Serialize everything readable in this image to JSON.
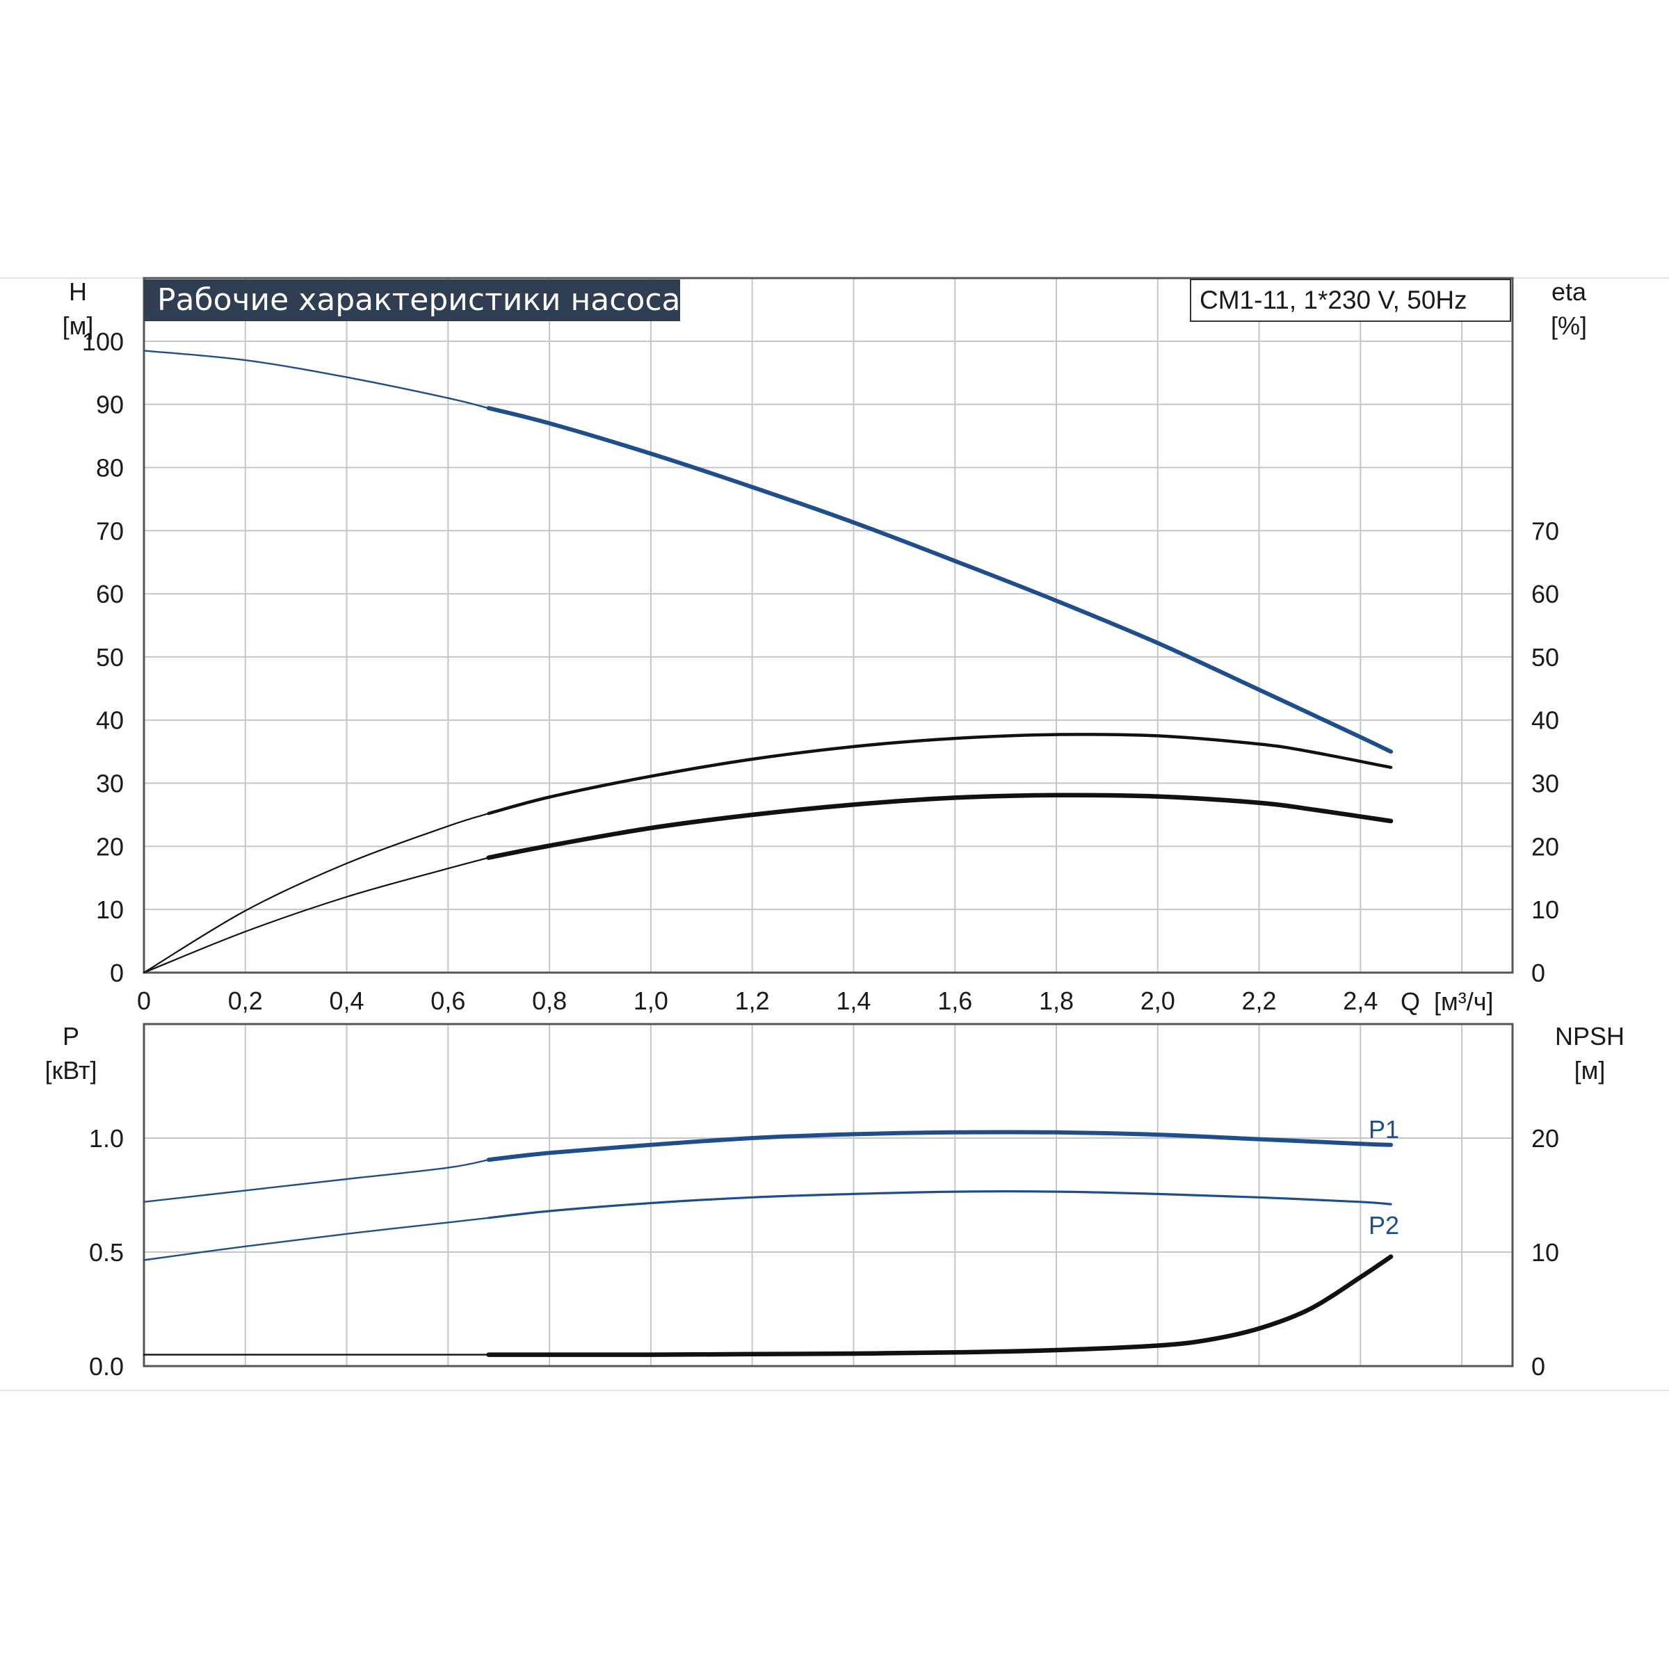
{
  "chart_data": [
    {
      "type": "line",
      "title": "Рабочие характеристики насоса",
      "model": "CM1-11, 1*230 V, 50Hz",
      "ylabel": "H",
      "yunit": "[м]",
      "y2label": "eta",
      "y2unit": "[%]",
      "xlabel": "Q",
      "xunit": "[м³/ч]",
      "xlim": [
        0,
        2.7
      ],
      "ylim": [
        0,
        110
      ],
      "y2lim": [
        0,
        110
      ],
      "xticks": [
        "0",
        "0,2",
        "0,4",
        "0,6",
        "0,8",
        "1,0",
        "1,2",
        "1,4",
        "1,6",
        "1,8",
        "2,0",
        "2,2",
        "2,4"
      ],
      "yticks": [
        "0",
        "10",
        "20",
        "30",
        "40",
        "50",
        "60",
        "70",
        "80",
        "90",
        "100"
      ],
      "y2ticks": [
        "0",
        "10",
        "20",
        "30",
        "40",
        "50",
        "60",
        "70"
      ],
      "grid": true,
      "series": [
        {
          "axis": "left",
          "color": "#1f4e8c",
          "x": [
            0,
            0.2,
            0.4,
            0.6,
            0.68,
            0.8,
            1.0,
            1.2,
            1.4,
            1.6,
            1.8,
            2.0,
            2.2,
            2.4,
            2.46
          ],
          "values": [
            98.5,
            97,
            94.3,
            91,
            89.4,
            87,
            82.2,
            76.9,
            71.3,
            65.2,
            58.9,
            52.2,
            44.8,
            37.3,
            35
          ]
        },
        {
          "axis": "right",
          "color": "#111111",
          "x": [
            0,
            0.2,
            0.4,
            0.6,
            0.68,
            0.8,
            1.0,
            1.2,
            1.4,
            1.6,
            1.8,
            2.0,
            2.2,
            2.3,
            2.46
          ],
          "values": [
            0,
            9.8,
            17.3,
            23.2,
            25.2,
            27.8,
            31.1,
            33.8,
            35.8,
            37.1,
            37.7,
            37.5,
            36.2,
            35,
            32.5
          ]
        },
        {
          "axis": "right",
          "color": "#111111",
          "x": [
            0,
            0.2,
            0.4,
            0.6,
            0.68,
            0.8,
            1.0,
            1.2,
            1.4,
            1.6,
            1.8,
            2.0,
            2.2,
            2.3,
            2.46
          ],
          "values": [
            0,
            6.5,
            12,
            16.5,
            18.2,
            20.1,
            22.9,
            25,
            26.6,
            27.7,
            28.1,
            27.9,
            26.9,
            25.9,
            24
          ]
        }
      ]
    },
    {
      "type": "line",
      "ylabel": "P",
      "yunit": "[кВт]",
      "y2label": "NPSH",
      "y2unit": "[м]",
      "xlim": [
        0,
        2.7
      ],
      "ylim": [
        0,
        1.5
      ],
      "y2lim": [
        0,
        30
      ],
      "yticks": [
        "0.0",
        "0.5",
        "1.0"
      ],
      "y2ticks": [
        "0",
        "10",
        "20"
      ],
      "grid": true,
      "series": [
        {
          "name": "P1",
          "axis": "left",
          "color": "#1f4e8c",
          "x": [
            0,
            0.2,
            0.4,
            0.6,
            0.68,
            0.8,
            1.0,
            1.2,
            1.4,
            1.6,
            1.8,
            2.0,
            2.2,
            2.4,
            2.46
          ],
          "values": [
            0.72,
            0.77,
            0.82,
            0.87,
            0.905,
            0.935,
            0.97,
            1.0,
            1.017,
            1.025,
            1.025,
            1.015,
            0.995,
            0.975,
            0.97
          ]
        },
        {
          "name": "P2",
          "axis": "left",
          "color": "#1f4e8c",
          "x": [
            0,
            0.2,
            0.4,
            0.6,
            0.68,
            0.8,
            1.0,
            1.2,
            1.4,
            1.6,
            1.8,
            2.0,
            2.2,
            2.4,
            2.46
          ],
          "values": [
            0.465,
            0.525,
            0.58,
            0.63,
            0.65,
            0.68,
            0.715,
            0.74,
            0.755,
            0.765,
            0.765,
            0.755,
            0.74,
            0.72,
            0.71
          ]
        },
        {
          "axis": "right",
          "color": "#111111",
          "x": [
            0,
            0.68,
            0.8,
            1.0,
            1.2,
            1.4,
            1.6,
            1.8,
            2.0,
            2.1,
            2.2,
            2.3,
            2.4,
            2.46
          ],
          "values": [
            1.0,
            1.0,
            1.0,
            1.0,
            1.05,
            1.1,
            1.2,
            1.4,
            1.8,
            2.3,
            3.3,
            5.0,
            7.8,
            9.6
          ]
        }
      ]
    }
  ]
}
